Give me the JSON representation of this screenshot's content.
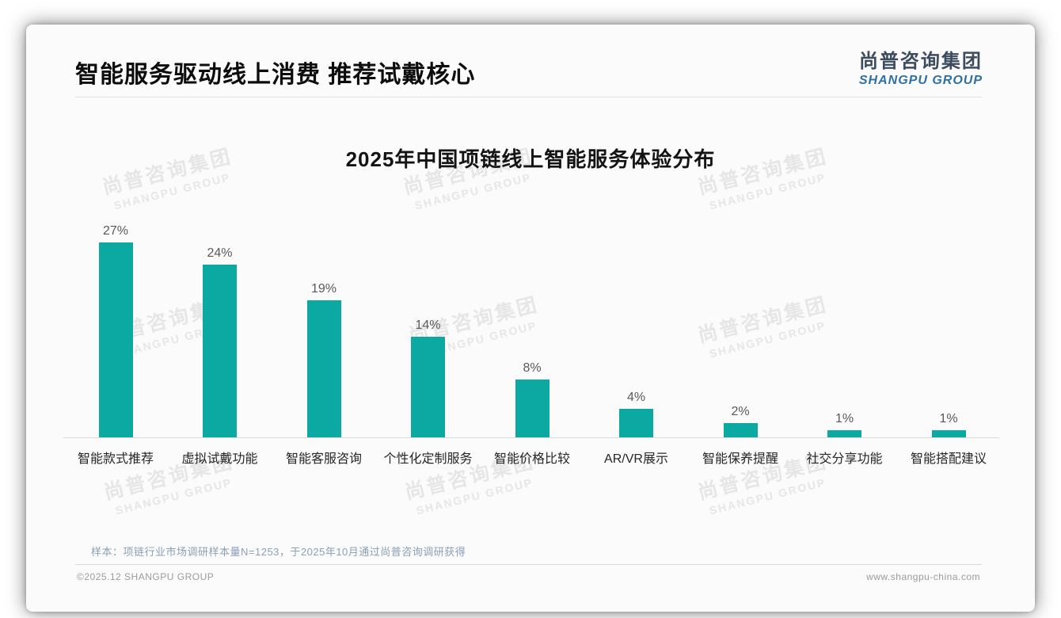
{
  "page": {
    "header": {
      "title": "智能服务驱动线上消费 推荐试戴核心"
    },
    "logo": {
      "cn": "尚普咨询集团",
      "en": "SHANGPU GROUP"
    },
    "watermark": {
      "cn": "尚普咨询集团",
      "en": "SHANGPU GROUP"
    },
    "footer": {
      "sample_note": "样本：项链行业市场调研样本量N=1253，于2025年10月通过尚普咨询调研获得",
      "copyright": "©2025.12 SHANGPU GROUP",
      "website": "www.shangpu-china.com"
    }
  },
  "chart_data": {
    "type": "bar",
    "title": "2025年中国项链线上智能服务体验分布",
    "categories": [
      "智能款式推荐",
      "虚拟试戴功能",
      "智能客服咨询",
      "个性化定制服务",
      "智能价格比较",
      "AR/VR展示",
      "智能保养提醒",
      "社交分享功能",
      "智能搭配建议"
    ],
    "values": [
      27,
      24,
      19,
      14,
      8,
      4,
      2,
      1,
      1
    ],
    "unit": "%",
    "value_labels": true,
    "xlabel": "",
    "ylabel": "",
    "ylim": [
      0,
      30
    ],
    "grid": false,
    "legend": false,
    "bar_color": "#0ca9a2",
    "axis_line_color": "#d9d9d9"
  }
}
